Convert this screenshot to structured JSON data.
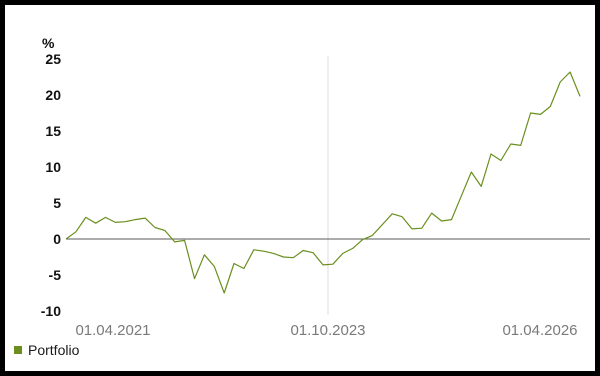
{
  "chart_data": {
    "type": "line",
    "unit_label": "%",
    "x_tick_labels": [
      "01.04.2021",
      "01.10.2023",
      "01.04.2026"
    ],
    "y_ticks": [
      25,
      20,
      15,
      10,
      5,
      0,
      -5,
      -10
    ],
    "ylim": [
      -10,
      25
    ],
    "grid": true,
    "legend_position": "bottom-left",
    "series": [
      {
        "name": "Portfolio",
        "color": "#6a8f1f",
        "values": [
          0,
          1,
          3,
          2.2,
          3,
          2.3,
          2.4,
          2.7,
          2.9,
          1.6,
          1.2,
          -0.4,
          -0.2,
          -5.5,
          -2.2,
          -3.8,
          -7.5,
          -3.4,
          -4.1,
          -1.5,
          -1.7,
          -2,
          -2.5,
          -2.6,
          -1.6,
          -1.9,
          -3.6,
          -3.5,
          -2,
          -1.3,
          -0.1,
          0.5,
          2,
          3.5,
          3.1,
          1.4,
          1.5,
          3.6,
          2.5,
          2.7,
          6,
          9.3,
          7.3,
          11.8,
          10.9,
          13.2,
          13,
          17.5,
          17.3,
          18.4,
          21.8,
          23.2,
          19.8
        ]
      }
    ]
  }
}
